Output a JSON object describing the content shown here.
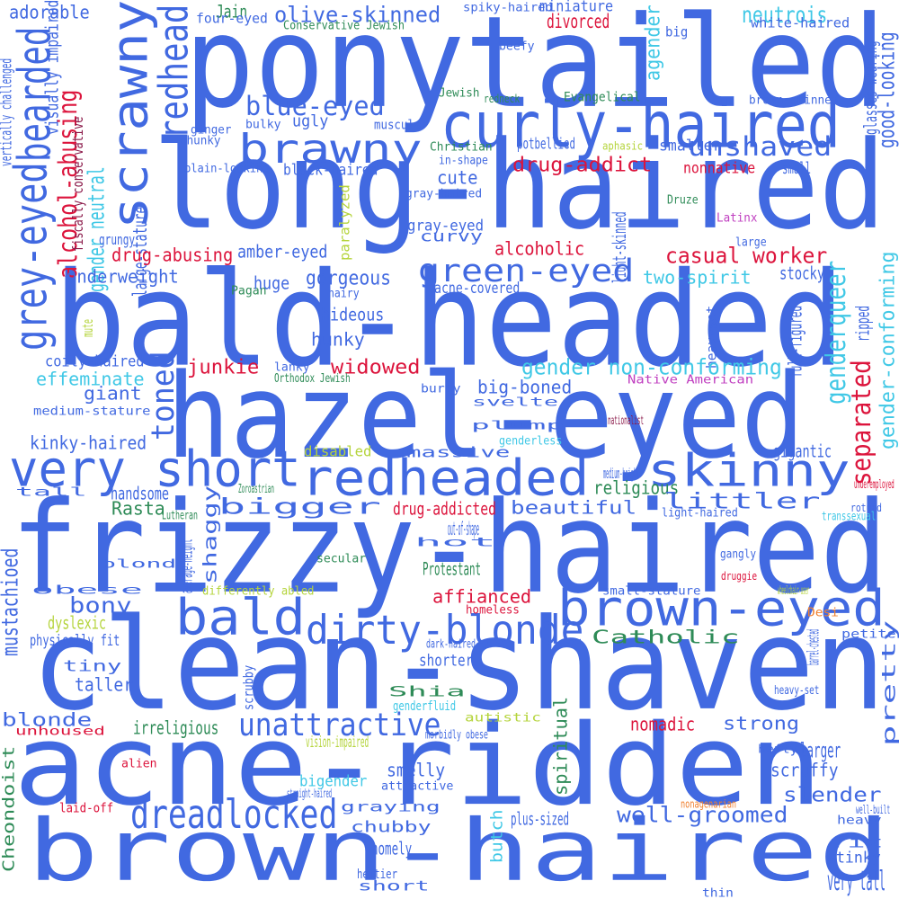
{
  "colors": {
    "background": "#ffffff",
    "appearance": "#4169e1",
    "socioeconomic": "#dc143c",
    "gender": "#40c8e6",
    "religion": "#2e8b57",
    "age": "#f08030",
    "ability": "#b5d43c",
    "ethnicity": "#c040c0",
    "political": "#8b1a4a"
  },
  "words": [
    {
      "text": "ponytailed",
      "color": "#4169e1"
    },
    {
      "text": "long-haired",
      "color": "#4169e1"
    },
    {
      "text": "bald-headed",
      "color": "#4169e1"
    },
    {
      "text": "hazel-eyed",
      "color": "#4169e1"
    },
    {
      "text": "frizzy-haired",
      "color": "#4169e1"
    },
    {
      "text": "clean-shaven",
      "color": "#4169e1"
    },
    {
      "text": "acne-ridden",
      "color": "#4169e1"
    },
    {
      "text": "brown-haired",
      "color": "#4169e1"
    },
    {
      "text": "curly-haired",
      "color": "#4169e1"
    },
    {
      "text": "brawny",
      "color": "#4169e1"
    },
    {
      "text": "scrawny",
      "color": "#4169e1"
    },
    {
      "text": "grey-eyed",
      "color": "#4169e1"
    },
    {
      "text": "bearded",
      "color": "#4169e1"
    },
    {
      "text": "redhead",
      "color": "#4169e1"
    },
    {
      "text": "very short",
      "color": "#4169e1"
    },
    {
      "text": "redheaded",
      "color": "#4169e1"
    },
    {
      "text": "skinny",
      "color": "#4169e1"
    },
    {
      "text": "brown-eyed",
      "color": "#4169e1"
    },
    {
      "text": "bald",
      "color": "#4169e1"
    },
    {
      "text": "dirty-blonde",
      "color": "#4169e1"
    },
    {
      "text": "dreadlocked",
      "color": "#4169e1"
    },
    {
      "text": "unattractive",
      "color": "#4169e1"
    },
    {
      "text": "green-eyed",
      "color": "#4169e1"
    },
    {
      "text": "blue-eyed",
      "color": "#4169e1"
    },
    {
      "text": "unshaved",
      "color": "#4169e1"
    },
    {
      "text": "olive-skinned",
      "color": "#4169e1"
    },
    {
      "text": "adorable",
      "color": "#4169e1"
    },
    {
      "text": "large-stature",
      "color": "#4169e1"
    },
    {
      "text": "visually impaired",
      "color": "#4169e1"
    },
    {
      "text": "vertically challenged",
      "color": "#4169e1"
    },
    {
      "text": "Jain",
      "color": "#2e8b57"
    },
    {
      "text": "four-eyed",
      "color": "#4169e1"
    },
    {
      "text": "spiky-haired",
      "color": "#4169e1"
    },
    {
      "text": "miniature",
      "color": "#4169e1"
    },
    {
      "text": "big",
      "color": "#4169e1"
    },
    {
      "text": "neutrois",
      "color": "#40c8e6"
    },
    {
      "text": "white-haired",
      "color": "#4169e1"
    },
    {
      "text": "Conservative Jewish",
      "color": "#2e8b57"
    },
    {
      "text": "divorced",
      "color": "#dc143c"
    },
    {
      "text": "agender",
      "color": "#40c8e6"
    },
    {
      "text": "glasses-wearing",
      "color": "#4169e1"
    },
    {
      "text": "good-looking",
      "color": "#4169e1"
    },
    {
      "text": "beefy",
      "color": "#4169e1"
    },
    {
      "text": "Jewish",
      "color": "#2e8b57"
    },
    {
      "text": "redneck",
      "color": "#2e8b57"
    },
    {
      "text": "Evangelical",
      "color": "#2e8b57"
    },
    {
      "text": "brown-skinned",
      "color": "#4169e1"
    },
    {
      "text": "ugly",
      "color": "#4169e1"
    },
    {
      "text": "bulky",
      "color": "#4169e1"
    },
    {
      "text": "muscular",
      "color": "#4169e1"
    },
    {
      "text": "ginger",
      "color": "#4169e1"
    },
    {
      "text": "chunky",
      "color": "#4169e1"
    },
    {
      "text": "Christian",
      "color": "#2e8b57"
    },
    {
      "text": "potbellied",
      "color": "#4169e1"
    },
    {
      "text": "aphasic",
      "color": "#b5d43c"
    },
    {
      "text": "smaller",
      "color": "#4169e1"
    },
    {
      "text": "in-shape",
      "color": "#4169e1"
    },
    {
      "text": "drug-addict",
      "color": "#dc143c"
    },
    {
      "text": "nonnative",
      "color": "#dc143c"
    },
    {
      "text": "small",
      "color": "#4169e1"
    },
    {
      "text": "plain-looking",
      "color": "#4169e1"
    },
    {
      "text": "black-haired",
      "color": "#4169e1"
    },
    {
      "text": "cute",
      "color": "#4169e1"
    },
    {
      "text": "gray-haired",
      "color": "#4169e1"
    },
    {
      "text": "Druze",
      "color": "#2e8b57"
    },
    {
      "text": "gray-eyed",
      "color": "#4169e1"
    },
    {
      "text": "Latinx",
      "color": "#c040c0"
    },
    {
      "text": "paralyzed",
      "color": "#b5d43c"
    },
    {
      "text": "alcohol-abusing",
      "color": "#dc143c"
    },
    {
      "text": "fiscally conservative",
      "color": "#8b1a4a"
    },
    {
      "text": "gender neutral",
      "color": "#40c8e6"
    },
    {
      "text": "grungy",
      "color": "#4169e1"
    },
    {
      "text": "curvy",
      "color": "#4169e1"
    },
    {
      "text": "large",
      "color": "#4169e1"
    },
    {
      "text": "drug-abusing",
      "color": "#dc143c"
    },
    {
      "text": "amber-eyed",
      "color": "#4169e1"
    },
    {
      "text": "alcoholic",
      "color": "#dc143c"
    },
    {
      "text": "casual worker",
      "color": "#dc143c"
    },
    {
      "text": "light-skinned",
      "color": "#4169e1"
    },
    {
      "text": "underweight",
      "color": "#4169e1"
    },
    {
      "text": "gorgeous",
      "color": "#4169e1"
    },
    {
      "text": "two-spirit",
      "color": "#40c8e6"
    },
    {
      "text": "stocky",
      "color": "#4169e1"
    },
    {
      "text": "Pagan",
      "color": "#2e8b57"
    },
    {
      "text": "huge",
      "color": "#4169e1"
    },
    {
      "text": "hairy",
      "color": "#4169e1"
    },
    {
      "text": "acne-covered",
      "color": "#4169e1"
    },
    {
      "text": "genderqueer",
      "color": "#40c8e6"
    },
    {
      "text": "gender-conforming",
      "color": "#40c8e6"
    },
    {
      "text": "hideous",
      "color": "#4169e1"
    },
    {
      "text": "mute",
      "color": "#b5d43c"
    },
    {
      "text": "heavyset",
      "color": "#4169e1"
    },
    {
      "text": "ripped",
      "color": "#4169e1"
    },
    {
      "text": "full-figured",
      "color": "#4169e1"
    },
    {
      "text": "hunky",
      "color": "#4169e1"
    },
    {
      "text": "coily-haired",
      "color": "#4169e1"
    },
    {
      "text": "effeminate",
      "color": "#40c8e6"
    },
    {
      "text": "toned",
      "color": "#4169e1"
    },
    {
      "text": "junkie",
      "color": "#dc143c"
    },
    {
      "text": "lanky",
      "color": "#4169e1"
    },
    {
      "text": "widowed",
      "color": "#dc143c"
    },
    {
      "text": "gender non-conforming",
      "color": "#40c8e6"
    },
    {
      "text": "separated",
      "color": "#dc143c"
    },
    {
      "text": "Orthodox Jewish",
      "color": "#2e8b57"
    },
    {
      "text": "Native American",
      "color": "#c040c0"
    },
    {
      "text": "giant",
      "color": "#4169e1"
    },
    {
      "text": "big-boned",
      "color": "#4169e1"
    },
    {
      "text": "burly",
      "color": "#4169e1"
    },
    {
      "text": "medium-stature",
      "color": "#4169e1"
    },
    {
      "text": "svelte",
      "color": "#4169e1"
    },
    {
      "text": "nationalist",
      "color": "#8b1a4a"
    },
    {
      "text": "plump",
      "color": "#4169e1"
    },
    {
      "text": "kinky-haired",
      "color": "#4169e1"
    },
    {
      "text": "genderless",
      "color": "#40c8e6"
    },
    {
      "text": "disabled",
      "color": "#b5d43c"
    },
    {
      "text": "gigantic",
      "color": "#4169e1"
    },
    {
      "text": "massive",
      "color": "#4169e1"
    },
    {
      "text": "medium-height",
      "color": "#4169e1"
    },
    {
      "text": "tall",
      "color": "#4169e1"
    },
    {
      "text": "Zoroastrian",
      "color": "#2e8b57"
    },
    {
      "text": "religious",
      "color": "#2e8b57"
    },
    {
      "text": "handsome",
      "color": "#4169e1"
    },
    {
      "text": "littler",
      "color": "#4169e1"
    },
    {
      "text": "underemployed",
      "color": "#dc143c"
    },
    {
      "text": "rotund",
      "color": "#4169e1"
    },
    {
      "text": "Rasta",
      "color": "#2e8b57"
    },
    {
      "text": "bigger",
      "color": "#4169e1"
    },
    {
      "text": "drug-addicted",
      "color": "#dc143c"
    },
    {
      "text": "beautiful",
      "color": "#4169e1"
    },
    {
      "text": "transsexual",
      "color": "#40c8e6"
    },
    {
      "text": "Lutheran",
      "color": "#2e8b57"
    },
    {
      "text": "shaggy",
      "color": "#4169e1"
    },
    {
      "text": "light-haired",
      "color": "#4169e1"
    },
    {
      "text": "out-of-shape",
      "color": "#4169e1"
    },
    {
      "text": "hot",
      "color": "#4169e1"
    },
    {
      "text": "mustachioed",
      "color": "#4169e1"
    },
    {
      "text": "average-height",
      "color": "#4169e1"
    },
    {
      "text": "secular",
      "color": "#2e8b57"
    },
    {
      "text": "gangly",
      "color": "#4169e1"
    },
    {
      "text": "blond",
      "color": "#4169e1"
    },
    {
      "text": "Protestant",
      "color": "#2e8b57"
    },
    {
      "text": "druggie",
      "color": "#dc143c"
    },
    {
      "text": "obese",
      "color": "#4169e1"
    },
    {
      "text": "differently abled",
      "color": "#b5d43c"
    },
    {
      "text": "small-stature",
      "color": "#4169e1"
    },
    {
      "text": "wheelchair-user",
      "color": "#b5d43c"
    },
    {
      "text": "Desi",
      "color": "#f08030"
    },
    {
      "text": "bony",
      "color": "#4169e1"
    },
    {
      "text": "affianced",
      "color": "#dc143c"
    },
    {
      "text": "homeless",
      "color": "#dc143c"
    },
    {
      "text": "dyslexic",
      "color": "#b5d43c"
    },
    {
      "text": "pretty",
      "color": "#4169e1"
    },
    {
      "text": "physically fit",
      "color": "#4169e1"
    },
    {
      "text": "dark-haired",
      "color": "#4169e1"
    },
    {
      "text": "petite",
      "color": "#4169e1"
    },
    {
      "text": "Catholic",
      "color": "#2e8b57"
    },
    {
      "text": "barrel-chested",
      "color": "#4169e1"
    },
    {
      "text": "tiny",
      "color": "#4169e1"
    },
    {
      "text": "shorter",
      "color": "#4169e1"
    },
    {
      "text": "taller",
      "color": "#4169e1"
    },
    {
      "text": "scrubby",
      "color": "#4169e1"
    },
    {
      "text": "Shia",
      "color": "#2e8b57"
    },
    {
      "text": "heavy-set",
      "color": "#4169e1"
    },
    {
      "text": "blonde",
      "color": "#4169e1"
    },
    {
      "text": "genderfluid",
      "color": "#40c8e6"
    },
    {
      "text": "autistic",
      "color": "#b5d43c"
    },
    {
      "text": "irreligious",
      "color": "#2e8b57"
    },
    {
      "text": "nomadic",
      "color": "#dc143c"
    },
    {
      "text": "strong",
      "color": "#4169e1"
    },
    {
      "text": "unhoused",
      "color": "#dc143c"
    },
    {
      "text": "morbidly obese",
      "color": "#4169e1"
    },
    {
      "text": "spiritual",
      "color": "#2e8b57"
    },
    {
      "text": "vision-impaired",
      "color": "#b5d43c"
    },
    {
      "text": "larger",
      "color": "#4169e1"
    },
    {
      "text": "alien",
      "color": "#dc143c"
    },
    {
      "text": "hefty",
      "color": "#4169e1"
    },
    {
      "text": "smelly",
      "color": "#4169e1"
    },
    {
      "text": "scruffy",
      "color": "#4169e1"
    },
    {
      "text": "bigender",
      "color": "#40c8e6"
    },
    {
      "text": "attractive",
      "color": "#4169e1"
    },
    {
      "text": "Cheondoist",
      "color": "#2e8b57"
    },
    {
      "text": "straight-haired",
      "color": "#4169e1"
    },
    {
      "text": "slender",
      "color": "#4169e1"
    },
    {
      "text": "laid-off",
      "color": "#dc143c"
    },
    {
      "text": "graying",
      "color": "#4169e1"
    },
    {
      "text": "well-groomed",
      "color": "#4169e1"
    },
    {
      "text": "nonagenarian",
      "color": "#f08030"
    },
    {
      "text": "well-built",
      "color": "#4169e1"
    },
    {
      "text": "heavy",
      "color": "#4169e1"
    },
    {
      "text": "chubby",
      "color": "#4169e1"
    },
    {
      "text": "plus-sized",
      "color": "#4169e1"
    },
    {
      "text": "butch",
      "color": "#40c8e6"
    },
    {
      "text": "homely",
      "color": "#4169e1"
    },
    {
      "text": "fit",
      "color": "#4169e1"
    },
    {
      "text": "stinky",
      "color": "#4169e1"
    },
    {
      "text": "heftier",
      "color": "#4169e1"
    },
    {
      "text": "short",
      "color": "#4169e1"
    },
    {
      "text": "very tall",
      "color": "#4169e1"
    },
    {
      "text": "thin",
      "color": "#4169e1"
    },
    {
      "text": "sexy",
      "color": "#4169e1"
    }
  ]
}
